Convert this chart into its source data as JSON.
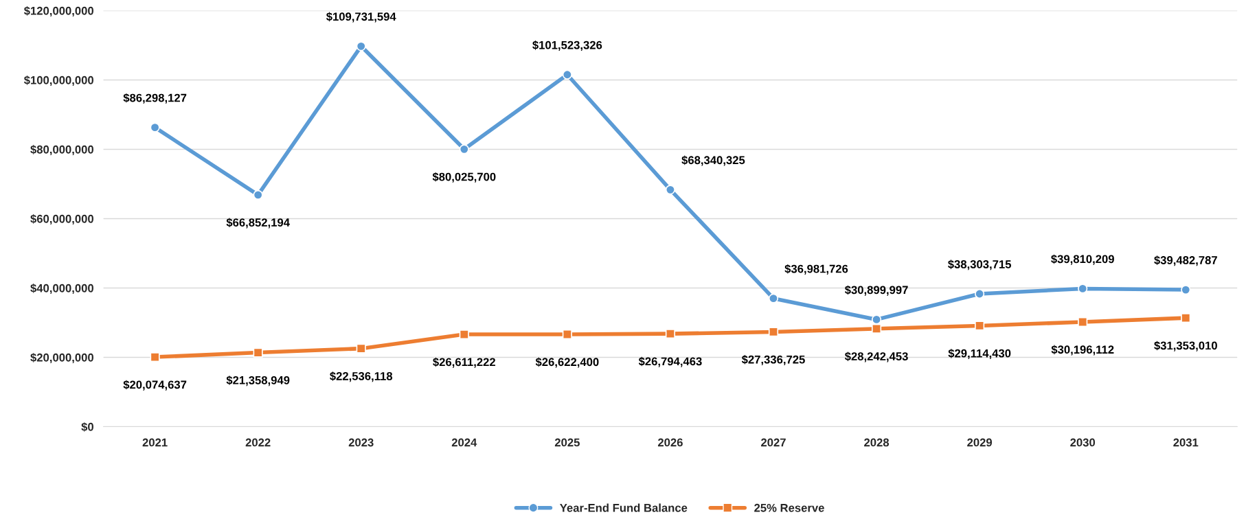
{
  "chart_data": {
    "type": "line",
    "categories": [
      "2021",
      "2022",
      "2023",
      "2024",
      "2025",
      "2026",
      "2027",
      "2028",
      "2029",
      "2030",
      "2031"
    ],
    "series": [
      {
        "name": "Year-End Fund Balance",
        "color": "#5b9bd5",
        "marker": "circle",
        "values": [
          86298127,
          66852194,
          109731594,
          80025700,
          101523326,
          68340325,
          36981726,
          30899997,
          38303715,
          39810209,
          39482787
        ],
        "value_labels": [
          "$86,298,127",
          "$66,852,194",
          "$109,731,594",
          "$80,025,700",
          "$101,523,326",
          "$68,340,325",
          "$36,981,726",
          "$30,899,997",
          "$38,303,715",
          "$39,810,209",
          "$39,482,787"
        ]
      },
      {
        "name": "25% Reserve",
        "color": "#ed7d31",
        "marker": "square",
        "values": [
          20074637,
          21358949,
          22536118,
          26611222,
          26622400,
          26794463,
          27336725,
          28242453,
          29114430,
          30196112,
          31353010
        ],
        "value_labels": [
          "$20,074,637",
          "$21,358,949",
          "$22,536,118",
          "$26,611,222",
          "$26,622,400",
          "$26,794,463",
          "$27,336,725",
          "$28,242,453",
          "$29,114,430",
          "$30,196,112",
          "$31,353,010"
        ]
      }
    ],
    "ylim": [
      0,
      120000000
    ],
    "yticks": [
      {
        "value": 0,
        "label": "$0"
      },
      {
        "value": 20000000,
        "label": "$20,000,000"
      },
      {
        "value": 40000000,
        "label": "$40,000,000"
      },
      {
        "value": 60000000,
        "label": "$60,000,000"
      },
      {
        "value": 80000000,
        "label": "$80,000,000"
      },
      {
        "value": 100000000,
        "label": "$100,000,000"
      },
      {
        "value": 120000000,
        "label": "$120,000,000"
      }
    ],
    "grid": "y",
    "legend": "bottom",
    "line_style": "solid"
  }
}
